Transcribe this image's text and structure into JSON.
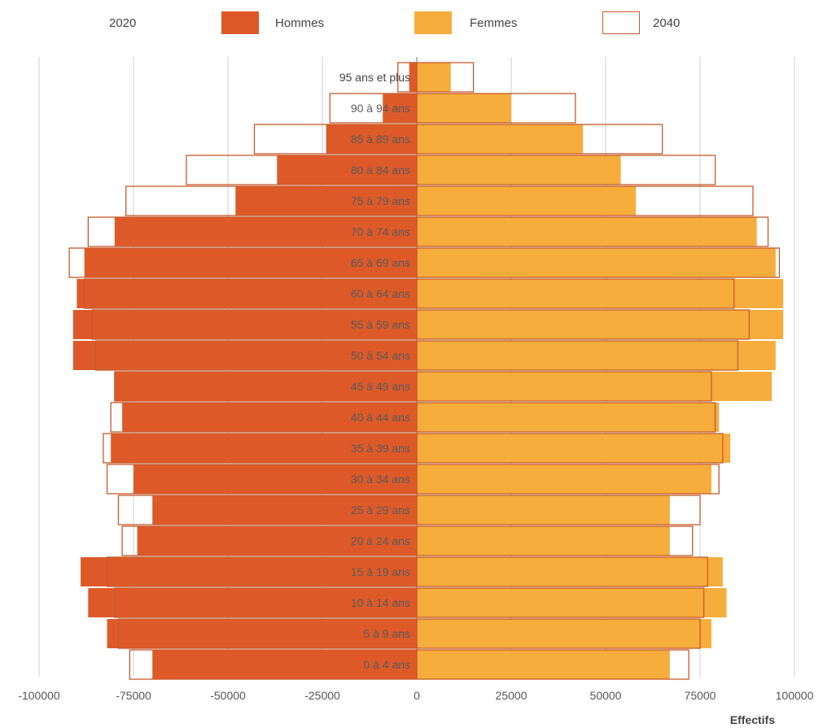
{
  "legend": {
    "year_2020": "2020",
    "men": "Hommes",
    "women": "Femmes",
    "year_2040": "2040"
  },
  "colors": {
    "men": "#dd5a28",
    "women": "#f6ad3c",
    "outline_2040": "#c75a2b",
    "grid": "#cfcfcf",
    "axis_text": "#555555"
  },
  "chart_data": {
    "type": "bar",
    "orientation": "horizontal",
    "categories": [
      "95 ans et plus",
      "90 à 94 ans",
      "85 à 89 ans",
      "80 à 84 ans",
      "75 à 79 ans",
      "70 à 74 ans",
      "65 à 69 ans",
      "60 à 64 ans",
      "55 à 59 ans",
      "50 à 54 ans",
      "45 à 49 ans",
      "40 à 44 ans",
      "35 à 39 ans",
      "30 à 34 ans",
      "25 à 29 ans",
      "20 à 24 ans",
      "15 à 19 ans",
      "10 à 14 ans",
      "5 à 9 ans",
      "0 à 4 ans"
    ],
    "series": [
      {
        "name": "Hommes",
        "year": "2020",
        "values": [
          -2000,
          -9000,
          -24000,
          -37000,
          -48000,
          -80000,
          -88000,
          -90000,
          -91000,
          -91000,
          -80000,
          -78000,
          -81000,
          -75000,
          -70000,
          -74000,
          -89000,
          -87000,
          -82000,
          -70000
        ]
      },
      {
        "name": "Femmes",
        "year": "2020",
        "values": [
          9000,
          25000,
          44000,
          54000,
          58000,
          90000,
          95000,
          97000,
          97000,
          95000,
          94000,
          80000,
          83000,
          78000,
          67000,
          67000,
          81000,
          82000,
          78000,
          67000
        ]
      },
      {
        "name": "Hommes",
        "year": "2040",
        "values": [
          -5000,
          -23000,
          -43000,
          -61000,
          -77000,
          -87000,
          -92000,
          -88000,
          -86000,
          -85000,
          -80000,
          -81000,
          -83000,
          -82000,
          -79000,
          -78000,
          -82000,
          -80000,
          -79000,
          -76000
        ]
      },
      {
        "name": "Femmes",
        "year": "2040",
        "values": [
          15000,
          42000,
          65000,
          79000,
          89000,
          93000,
          96000,
          84000,
          88000,
          85000,
          78000,
          79000,
          81000,
          80000,
          75000,
          73000,
          77000,
          76000,
          75000,
          72000
        ]
      }
    ],
    "xlabel": "Effectifs",
    "xlim": [
      -100000,
      100000
    ],
    "xticks": [
      -100000,
      -75000,
      -50000,
      -25000,
      0,
      25000,
      50000,
      75000,
      100000
    ],
    "xtick_labels": [
      "-100000",
      "-75000",
      "-50000",
      "-25000",
      "0",
      "25000",
      "50000",
      "75000",
      "100000"
    ],
    "grid": true,
    "legend_position": "top"
  }
}
